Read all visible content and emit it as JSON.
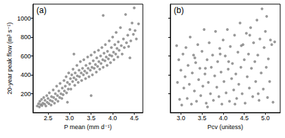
{
  "chart_data": [
    {
      "type": "scatter",
      "title": "(a)",
      "x_label": "P mean (mm d⁻¹)",
      "y_label": "20-year peak flow (m³ s⁻¹)",
      "color": "#808080",
      "marker": "circle",
      "xlim": [
        2.15,
        4.7
      ],
      "xticks": [
        2.5,
        {
          "value": 3,
          "label": "3.0"
        },
        3.5,
        {
          "value": 4,
          "label": "4.0"
        },
        4.5
      ],
      "ylim": [
        0,
        1150
      ],
      "yticks": [
        200,
        400,
        600,
        800,
        1000
      ],
      "grid": false,
      "x": [
        2.25,
        2.28,
        2.3,
        2.31,
        2.33,
        2.35,
        2.36,
        2.38,
        2.4,
        2.42,
        2.43,
        2.45,
        2.47,
        2.48,
        2.5,
        2.52,
        2.53,
        2.55,
        2.57,
        2.58,
        2.6,
        2.62,
        2.63,
        2.65,
        2.67,
        2.68,
        2.7,
        2.72,
        2.73,
        2.75,
        2.77,
        2.78,
        2.8,
        2.82,
        2.83,
        2.85,
        2.87,
        2.88,
        2.9,
        2.92,
        2.93,
        2.95,
        2.97,
        2.98,
        3.0,
        3.02,
        3.03,
        3.05,
        3.07,
        3.08,
        3.1,
        3.12,
        3.13,
        3.15,
        3.17,
        3.18,
        3.2,
        3.22,
        3.23,
        3.25,
        3.27,
        3.28,
        3.3,
        3.32,
        3.33,
        3.35,
        3.37,
        3.38,
        3.4,
        3.42,
        3.43,
        3.45,
        3.47,
        3.48,
        3.5,
        3.52,
        3.53,
        3.55,
        3.57,
        3.58,
        3.6,
        3.62,
        3.63,
        3.65,
        3.67,
        3.68,
        3.7,
        3.72,
        3.73,
        3.75,
        3.77,
        3.78,
        3.8,
        3.82,
        3.83,
        3.85,
        3.87,
        3.88,
        3.9,
        3.92,
        3.93,
        3.95,
        3.97,
        3.98,
        4.0,
        4.02,
        4.03,
        4.05,
        4.07,
        4.08,
        4.1,
        4.12,
        4.13,
        4.15,
        4.18,
        4.2,
        4.22,
        4.25,
        4.27,
        4.3,
        4.32,
        4.35,
        4.37,
        4.4,
        4.42,
        4.45,
        4.48,
        4.5,
        4.52,
        4.55,
        4.6,
        3.78,
        3.1,
        3.5,
        2.95,
        4.4
      ],
      "values": [
        70,
        95,
        60,
        120,
        85,
        140,
        75,
        100,
        160,
        90,
        130,
        70,
        180,
        110,
        150,
        95,
        210,
        130,
        80,
        170,
        120,
        240,
        160,
        100,
        200,
        140,
        280,
        180,
        120,
        230,
        160,
        310,
        200,
        150,
        260,
        190,
        340,
        230,
        280,
        380,
        210,
        320,
        250,
        420,
        300,
        360,
        250,
        400,
        330,
        460,
        370,
        290,
        420,
        350,
        500,
        390,
        320,
        450,
        380,
        540,
        420,
        340,
        470,
        400,
        560,
        440,
        360,
        500,
        420,
        590,
        470,
        380,
        520,
        450,
        610,
        480,
        400,
        550,
        470,
        640,
        510,
        430,
        580,
        490,
        660,
        540,
        460,
        600,
        520,
        690,
        560,
        480,
        630,
        550,
        720,
        590,
        500,
        650,
        570,
        760,
        610,
        530,
        690,
        600,
        800,
        640,
        560,
        720,
        620,
        850,
        680,
        590,
        750,
        660,
        900,
        710,
        620,
        780,
        690,
        1040,
        740,
        820,
        700,
        880,
        760,
        950,
        830,
        1110,
        870,
        780,
        940,
        1030,
        620,
        180,
        110,
        580
      ]
    },
    {
      "type": "scatter",
      "title": "(b)",
      "x_label": "Pcv (unitess)",
      "color": "#808080",
      "marker": "circle",
      "tick_labels": "x",
      "xlim": [
        2.75,
        5.35
      ],
      "xticks": [
        {
          "value": 3,
          "label": "3.0"
        },
        3.5,
        {
          "value": 4,
          "label": "4.0"
        },
        4.5,
        {
          "value": 5,
          "label": "5.0"
        }
      ],
      "ylim": [
        0,
        1150
      ],
      "yticks": [
        200,
        400,
        600,
        800,
        1000
      ],
      "grid": false,
      "x": [
        2.9,
        2.92,
        2.95,
        2.97,
        3.0,
        3.02,
        3.05,
        3.07,
        3.1,
        3.12,
        3.15,
        3.17,
        3.2,
        3.22,
        3.25,
        3.27,
        3.3,
        3.32,
        3.35,
        3.37,
        3.4,
        3.42,
        3.45,
        3.47,
        3.5,
        3.52,
        3.55,
        3.57,
        3.6,
        3.62,
        3.65,
        3.67,
        3.7,
        3.72,
        3.75,
        3.77,
        3.8,
        3.82,
        3.85,
        3.87,
        3.9,
        3.92,
        3.95,
        3.97,
        4.0,
        4.02,
        4.05,
        4.07,
        4.1,
        4.12,
        4.15,
        4.17,
        4.2,
        4.22,
        4.25,
        4.27,
        4.3,
        4.32,
        4.35,
        4.37,
        4.4,
        4.42,
        4.45,
        4.47,
        4.5,
        4.52,
        4.55,
        4.57,
        4.6,
        4.62,
        4.65,
        4.67,
        4.7,
        4.72,
        4.75,
        4.77,
        4.8,
        4.82,
        4.85,
        4.87,
        4.9,
        4.92,
        4.95,
        4.97,
        5.0,
        5.02,
        5.05,
        5.07,
        5.1,
        5.12,
        5.15,
        5.18,
        5.22,
        3.33,
        3.63,
        3.93,
        4.13,
        4.43,
        4.63,
        4.83,
        5.03,
        4.28,
        3.58
      ],
      "values": [
        710,
        320,
        560,
        140,
        450,
        80,
        620,
        260,
        380,
        690,
        150,
        500,
        300,
        800,
        90,
        420,
        610,
        230,
        530,
        120,
        720,
        350,
        470,
        180,
        650,
        280,
        880,
        410,
        100,
        560,
        320,
        740,
        200,
        480,
        610,
        130,
        390,
        860,
        270,
        540,
        170,
        680,
        430,
        90,
        770,
        330,
        600,
        210,
        880,
        460,
        120,
        700,
        360,
        520,
        240,
        820,
        410,
        150,
        640,
        300,
        950,
        480,
        200,
        720,
        560,
        100,
        840,
        380,
        620,
        260,
        900,
        470,
        170,
        740,
        540,
        330,
        980,
        610,
        130,
        780,
        420,
        1100,
        250,
        690,
        860,
        480,
        160,
        570,
        330,
        770,
        720,
        110,
        750,
        580,
        60,
        620,
        540,
        710,
        820,
        200,
        1020,
        90,
        470
      ]
    }
  ]
}
